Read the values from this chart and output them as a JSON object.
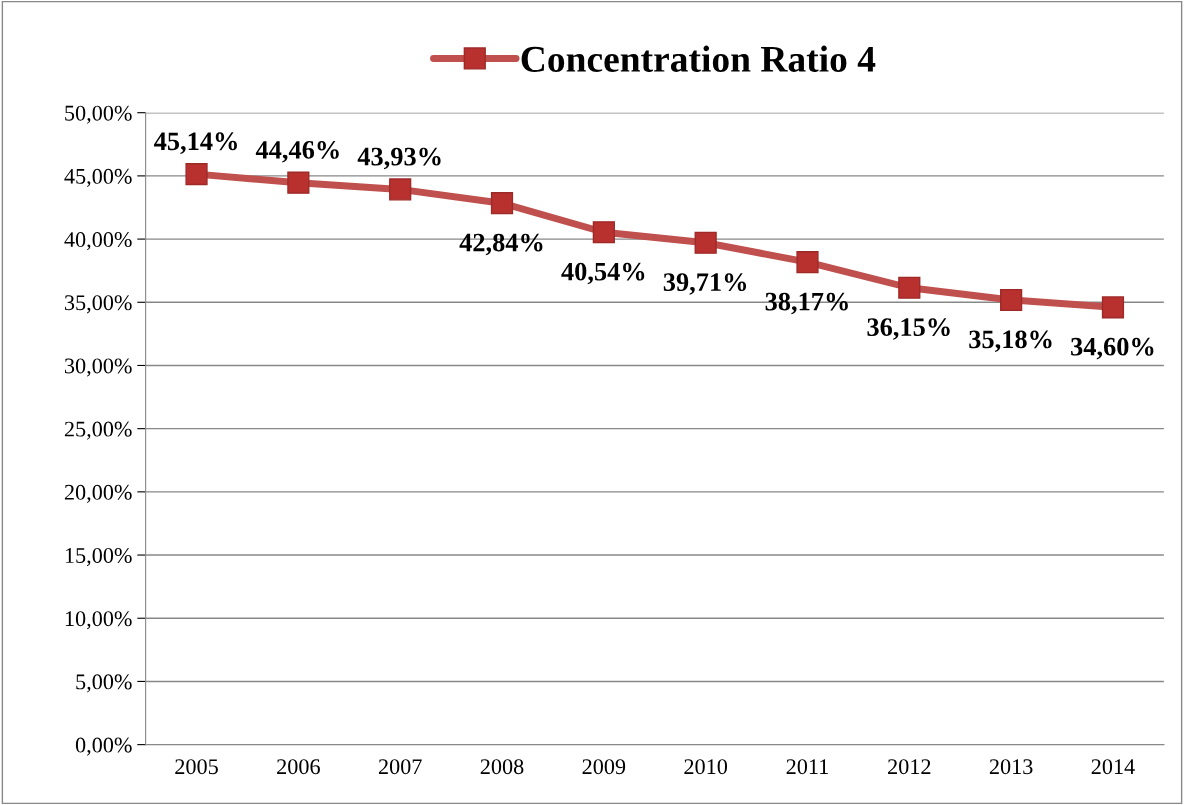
{
  "chart_data": {
    "type": "line",
    "categories": [
      "2005",
      "2006",
      "2007",
      "2008",
      "2009",
      "2010",
      "2011",
      "2012",
      "2013",
      "2014"
    ],
    "series": [
      {
        "name": "Concentration Ratio 4",
        "color": "#c0504d",
        "values": [
          45.14,
          44.46,
          43.93,
          42.84,
          40.54,
          39.71,
          38.17,
          36.15,
          35.18,
          34.6
        ],
        "value_labels": [
          "45,14%",
          "44,46%",
          "43,93%",
          "42,84%",
          "40,54%",
          "39,71%",
          "38,17%",
          "36,15%",
          "35,18%",
          "34,60%"
        ]
      }
    ],
    "ylim": [
      0,
      50
    ],
    "yticks": [
      {
        "value": 0,
        "label": "0,00%"
      },
      {
        "value": 5,
        "label": "5,00%"
      },
      {
        "value": 10,
        "label": "10,00%"
      },
      {
        "value": 15,
        "label": "15,00%"
      },
      {
        "value": 20,
        "label": "20,00%"
      },
      {
        "value": 25,
        "label": "25,00%"
      },
      {
        "value": 30,
        "label": "30,00%"
      },
      {
        "value": 35,
        "label": "35,00%"
      },
      {
        "value": 40,
        "label": "40,00%"
      },
      {
        "value": 45,
        "label": "45,00%"
      },
      {
        "value": 50,
        "label": "50,00%"
      }
    ],
    "grid": "y",
    "legend": "top",
    "marker": "square",
    "line_style": "solid"
  }
}
